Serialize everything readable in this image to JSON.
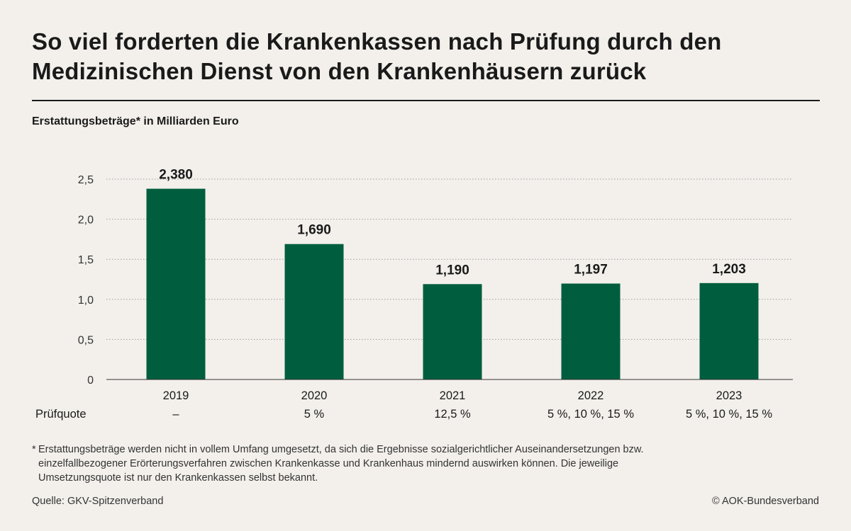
{
  "header": {
    "title": "So viel forderten die Krankenkassen nach Prüfung durch den Medizinischen Dienst von den Krankenhäusern zurück",
    "subtitle": "Erstattungsbeträge* in Milliarden Euro"
  },
  "chart_data": {
    "type": "bar",
    "title": "So viel forderten die Krankenkassen nach Prüfung durch den Medizinischen Dienst von den Krankenhäusern zurück",
    "subtitle": "Erstattungsbeträge* in Milliarden Euro",
    "categories": [
      "2019",
      "2020",
      "2021",
      "2022",
      "2023"
    ],
    "values": [
      2.38,
      1.69,
      1.19,
      1.197,
      1.203
    ],
    "value_labels": [
      "2,380",
      "1,690",
      "1,190",
      "1,197",
      "1,203"
    ],
    "ylim": [
      0,
      2.5
    ],
    "yticks": [
      0,
      0.5,
      1.0,
      1.5,
      2.0,
      2.5
    ],
    "ytick_labels": [
      "0",
      "0,5",
      "1,0",
      "1,5",
      "2,0",
      "2,5"
    ],
    "grid": true,
    "bar_color": "#005e3f",
    "extra_row": {
      "label": "Prüfquote",
      "values": [
        "–",
        "5 %",
        "12,5 %",
        "5 %, 10 %, 15 %",
        "5 %, 10 %, 15 %"
      ]
    }
  },
  "footer": {
    "footnote_star": "*",
    "footnote": "Erstattungsbeträge werden nicht in vollem Umfang umgesetzt, da sich die Ergebnisse sozialgerichtlicher Auseinandersetzungen bzw. einzelfallbezogener Erörterungsverfahren zwischen Krankenkasse und Krankenhaus mindernd auswirken können. Die jeweilige Umsetzungsquote ist nur den Krankenkassen selbst bekannt.",
    "source": "Quelle: GKV-Spitzenverband",
    "copyright": "© AOK-Bundesverband"
  }
}
